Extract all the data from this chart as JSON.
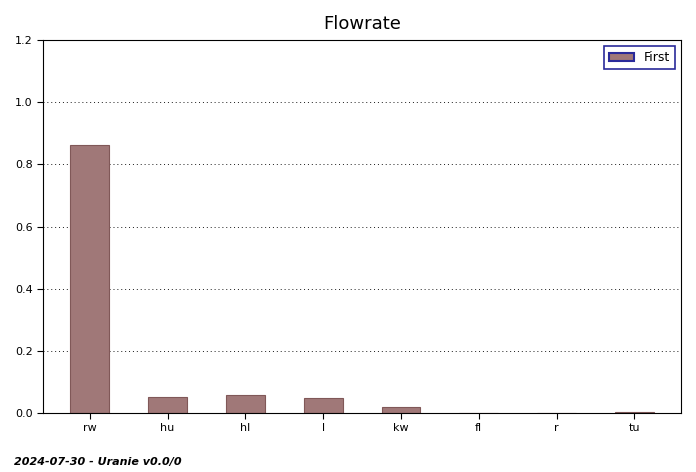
{
  "title": "Flowrate",
  "categories": [
    "rw",
    "hu",
    "hl",
    "l",
    "kw",
    "fl",
    "r",
    "tu"
  ],
  "values": [
    0.864,
    0.052,
    0.057,
    0.047,
    0.018,
    0.001,
    0.001,
    0.002
  ],
  "bar_color": "#a07878",
  "bar_edge_color": "#805858",
  "ylim": [
    0,
    1.2
  ],
  "yticks": [
    0,
    0.2,
    0.4,
    0.6,
    0.8,
    1.0,
    1.2
  ],
  "legend_label": "First",
  "legend_facecolor": "#a07878",
  "legend_edgecolor": "#2a2a9a",
  "grid_color": "#000000",
  "background_color": "#ffffff",
  "plot_bg_color": "#ffffff",
  "footer_text": "2024-07-30 - Uranie v0.0/0",
  "title_fontsize": 13,
  "footer_fontsize": 8,
  "tick_fontsize": 8,
  "legend_fontsize": 9,
  "spine_color": "#000000"
}
